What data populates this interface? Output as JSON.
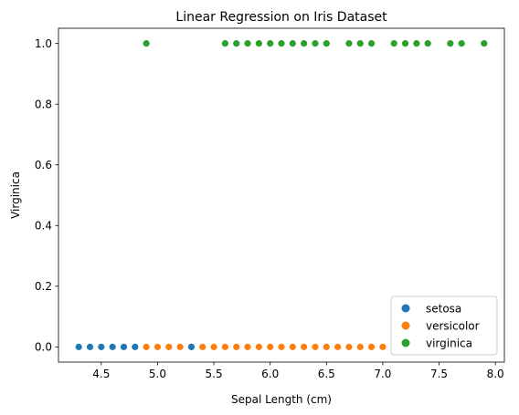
{
  "chart_data": {
    "type": "scatter",
    "title": "Linear Regression on Iris Dataset",
    "xlabel": "Sepal Length (cm)",
    "ylabel": "Virginica",
    "xlim": [
      4.12,
      8.08
    ],
    "ylim": [
      -0.05,
      1.05
    ],
    "xticks": [
      4.5,
      5.0,
      5.5,
      6.0,
      6.5,
      7.0,
      7.5,
      8.0
    ],
    "xtick_labels": [
      "4.5",
      "5.0",
      "5.5",
      "6.0",
      "6.5",
      "7.0",
      "7.5",
      "8.0"
    ],
    "yticks": [
      0.0,
      0.2,
      0.4,
      0.6,
      0.8,
      1.0
    ],
    "ytick_labels": [
      "0.0",
      "0.2",
      "0.4",
      "0.6",
      "0.8",
      "1.0"
    ],
    "grid": false,
    "legend_position": "lower-right",
    "series": [
      {
        "name": "setosa",
        "color": "#1f77b4",
        "x": [
          4.3,
          4.4,
          4.5,
          4.6,
          4.7,
          4.8,
          5.3
        ],
        "y": [
          0,
          0,
          0,
          0,
          0,
          0,
          0
        ]
      },
      {
        "name": "versicolor",
        "color": "#ff7f0e",
        "x": [
          4.9,
          5.0,
          5.1,
          5.2,
          5.4,
          5.5,
          5.6,
          5.7,
          5.8,
          5.9,
          6.0,
          6.1,
          6.2,
          6.3,
          6.4,
          6.5,
          6.6,
          6.7,
          6.8,
          6.9,
          7.0
        ],
        "y": [
          0,
          0,
          0,
          0,
          0,
          0,
          0,
          0,
          0,
          0,
          0,
          0,
          0,
          0,
          0,
          0,
          0,
          0,
          0,
          0,
          0
        ]
      },
      {
        "name": "virginica",
        "color": "#2ca02c",
        "x": [
          4.9,
          5.6,
          5.7,
          5.8,
          5.9,
          6.0,
          6.1,
          6.2,
          6.3,
          6.4,
          6.5,
          6.7,
          6.8,
          6.9,
          7.1,
          7.2,
          7.3,
          7.4,
          7.6,
          7.7,
          7.9
        ],
        "y": [
          1,
          1,
          1,
          1,
          1,
          1,
          1,
          1,
          1,
          1,
          1,
          1,
          1,
          1,
          1,
          1,
          1,
          1,
          1,
          1,
          1
        ]
      }
    ]
  }
}
